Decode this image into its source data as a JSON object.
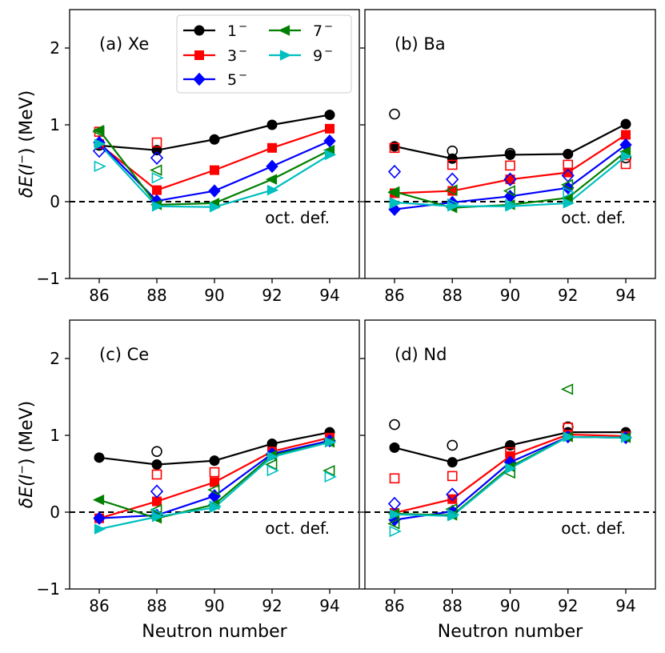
{
  "chart_data": {
    "type": "line",
    "x": [
      86,
      88,
      90,
      92,
      94
    ],
    "xlabel": "Neutron number",
    "ylabel_prefix": "δE(I",
    "ylabel_suffix": ") (MeV)",
    "ylabel_sup": "−",
    "ylim": [
      -1,
      2.5
    ],
    "yticks": [
      -1,
      0,
      1,
      2
    ],
    "ytick_labels": [
      "−1",
      "0",
      "1",
      "2"
    ],
    "xticks": [
      86,
      88,
      90,
      92,
      94
    ],
    "xtick_labels": [
      "86",
      "88",
      "90",
      "92",
      "94"
    ],
    "reference_line": {
      "y": 0,
      "style": "dashed",
      "label": "oct. def."
    },
    "legend": [
      {
        "key": "1",
        "name": "1⁻",
        "base": "1",
        "sup": "−",
        "color": "#000000",
        "marker": "circle"
      },
      {
        "key": "3",
        "name": "3⁻",
        "base": "3",
        "sup": "−",
        "color": "#ff0000",
        "marker": "square"
      },
      {
        "key": "5",
        "name": "5⁻",
        "base": "5",
        "sup": "−",
        "color": "#0000ff",
        "marker": "diamond"
      },
      {
        "key": "7",
        "name": "7⁻",
        "base": "7",
        "sup": "−",
        "color": "#008000",
        "marker": "triangle-left"
      },
      {
        "key": "9",
        "name": "9⁻",
        "base": "9",
        "sup": "−",
        "color": "#00bfbf",
        "marker": "triangle-right"
      }
    ],
    "panels": [
      {
        "label": "(a) Xe",
        "series": {
          "1": [
            0.73,
            0.67,
            0.81,
            1.0,
            1.13
          ],
          "3": [
            0.75,
            0.15,
            0.41,
            0.7,
            0.95
          ],
          "5": [
            0.77,
            0.01,
            0.14,
            0.46,
            0.79
          ],
          "7": [
            0.93,
            -0.04,
            -0.02,
            0.29,
            0.67
          ],
          "9": [
            0.75,
            -0.06,
            -0.07,
            0.15,
            0.61
          ]
        },
        "open_markers": {
          "1": [
            null,
            null,
            null,
            null,
            null
          ],
          "3": [
            0.91,
            0.77,
            null,
            null,
            null
          ],
          "5": [
            0.66,
            0.57,
            null,
            null,
            null
          ],
          "7": [
            0.91,
            0.41,
            null,
            null,
            null
          ],
          "9": [
            0.46,
            0.31,
            null,
            null,
            null
          ]
        }
      },
      {
        "label": "(b) Ba",
        "series": {
          "1": [
            0.72,
            0.56,
            0.61,
            0.62,
            1.01
          ],
          "3": [
            0.11,
            0.14,
            0.29,
            0.38,
            0.87
          ],
          "5": [
            -0.1,
            -0.01,
            0.07,
            0.18,
            0.74
          ],
          "7": [
            0.13,
            -0.08,
            -0.04,
            0.05,
            0.65
          ],
          "9": [
            -0.01,
            -0.06,
            -0.06,
            -0.02,
            0.59
          ]
        },
        "open_markers": {
          "1": [
            1.14,
            0.66,
            0.63,
            null,
            0.57
          ],
          "3": [
            0.7,
            0.48,
            0.47,
            0.48,
            0.49
          ],
          "5": [
            0.39,
            0.29,
            0.29,
            0.34,
            null
          ],
          "7": [
            0.12,
            0.15,
            0.14,
            0.22,
            null
          ],
          "9": [
            -0.02,
            -0.03,
            -0.04,
            0.12,
            null
          ]
        }
      },
      {
        "label": "(c) Ce",
        "series": {
          "1": [
            0.71,
            0.62,
            0.67,
            0.89,
            1.04
          ],
          "3": [
            -0.08,
            0.14,
            0.39,
            0.79,
            0.97
          ],
          "5": [
            -0.08,
            -0.04,
            0.21,
            0.76,
            0.93
          ],
          "7": [
            0.16,
            -0.08,
            0.1,
            0.74,
            0.91
          ],
          "9": [
            -0.22,
            -0.06,
            0.06,
            0.72,
            0.91
          ]
        },
        "open_markers": {
          "1": [
            null,
            0.79,
            null,
            null,
            null
          ],
          "3": [
            null,
            0.49,
            0.52,
            null,
            null
          ],
          "5": [
            null,
            0.27,
            0.21,
            null,
            null
          ],
          "7": [
            null,
            0.03,
            0.29,
            0.62,
            0.54
          ],
          "9": [
            null,
            -0.02,
            0.08,
            0.54,
            0.46
          ]
        }
      },
      {
        "label": "(d) Nd",
        "series": {
          "1": [
            0.84,
            0.65,
            0.87,
            1.04,
            1.04
          ],
          "3": [
            -0.01,
            0.17,
            0.73,
            1.01,
            0.99
          ],
          "5": [
            -0.1,
            0.01,
            0.65,
            0.98,
            0.97
          ],
          "7": [
            -0.02,
            -0.04,
            0.59,
            0.98,
            0.97
          ],
          "9": [
            -0.03,
            -0.05,
            0.57,
            0.98,
            0.97
          ]
        },
        "open_markers": {
          "1": [
            1.14,
            0.87,
            null,
            1.11,
            null
          ],
          "3": [
            0.44,
            0.47,
            0.78,
            1.1,
            null
          ],
          "5": [
            0.11,
            0.23,
            null,
            null,
            null
          ],
          "7": [
            -0.15,
            0.04,
            0.51,
            1.6,
            null
          ],
          "9": [
            -0.25,
            -0.03,
            null,
            null,
            null
          ]
        }
      }
    ]
  }
}
